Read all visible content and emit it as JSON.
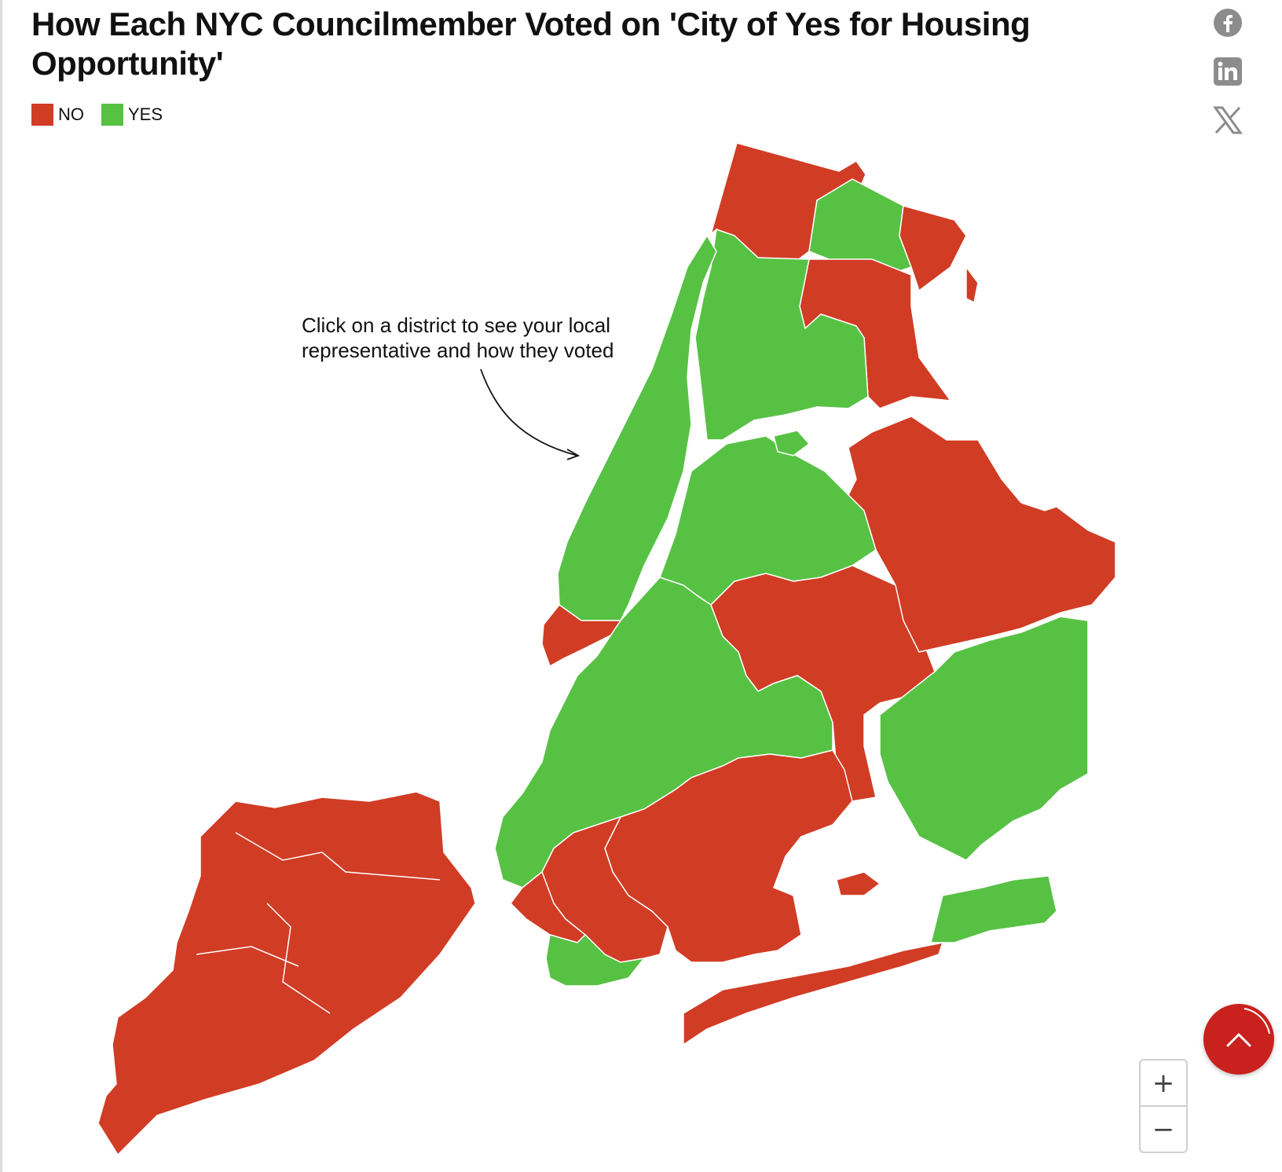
{
  "title": "How Each NYC Councilmember Voted on 'City of Yes for Housing Opportunity'",
  "legend": [
    {
      "label": "NO",
      "color": "#d13c25"
    },
    {
      "label": "YES",
      "color": "#57c144"
    }
  ],
  "annotation": {
    "line1": "Click on a district to see your local",
    "line2": "representative and how they voted"
  },
  "share": [
    "facebook-icon",
    "linkedin-icon",
    "x-icon"
  ],
  "zoom": {
    "in_label": "+",
    "out_label": "−"
  },
  "colors": {
    "no": "#d13c25",
    "yes": "#57c144",
    "scroll_button": "#c9211e"
  },
  "votes": {
    "districts_no": [
      "bronx-north",
      "bronx-east",
      "queens-northeast",
      "queens-east",
      "queens-central",
      "manhattan-lower",
      "brooklyn-southeast",
      "brooklyn-south",
      "queens-rockaway",
      "staten-island"
    ],
    "districts_yes": [
      "manhattan-west",
      "bronx-central",
      "bronx-northeast",
      "queens-west",
      "brooklyn-west",
      "queens-southeast",
      "brooklyn-coney-island"
    ]
  }
}
